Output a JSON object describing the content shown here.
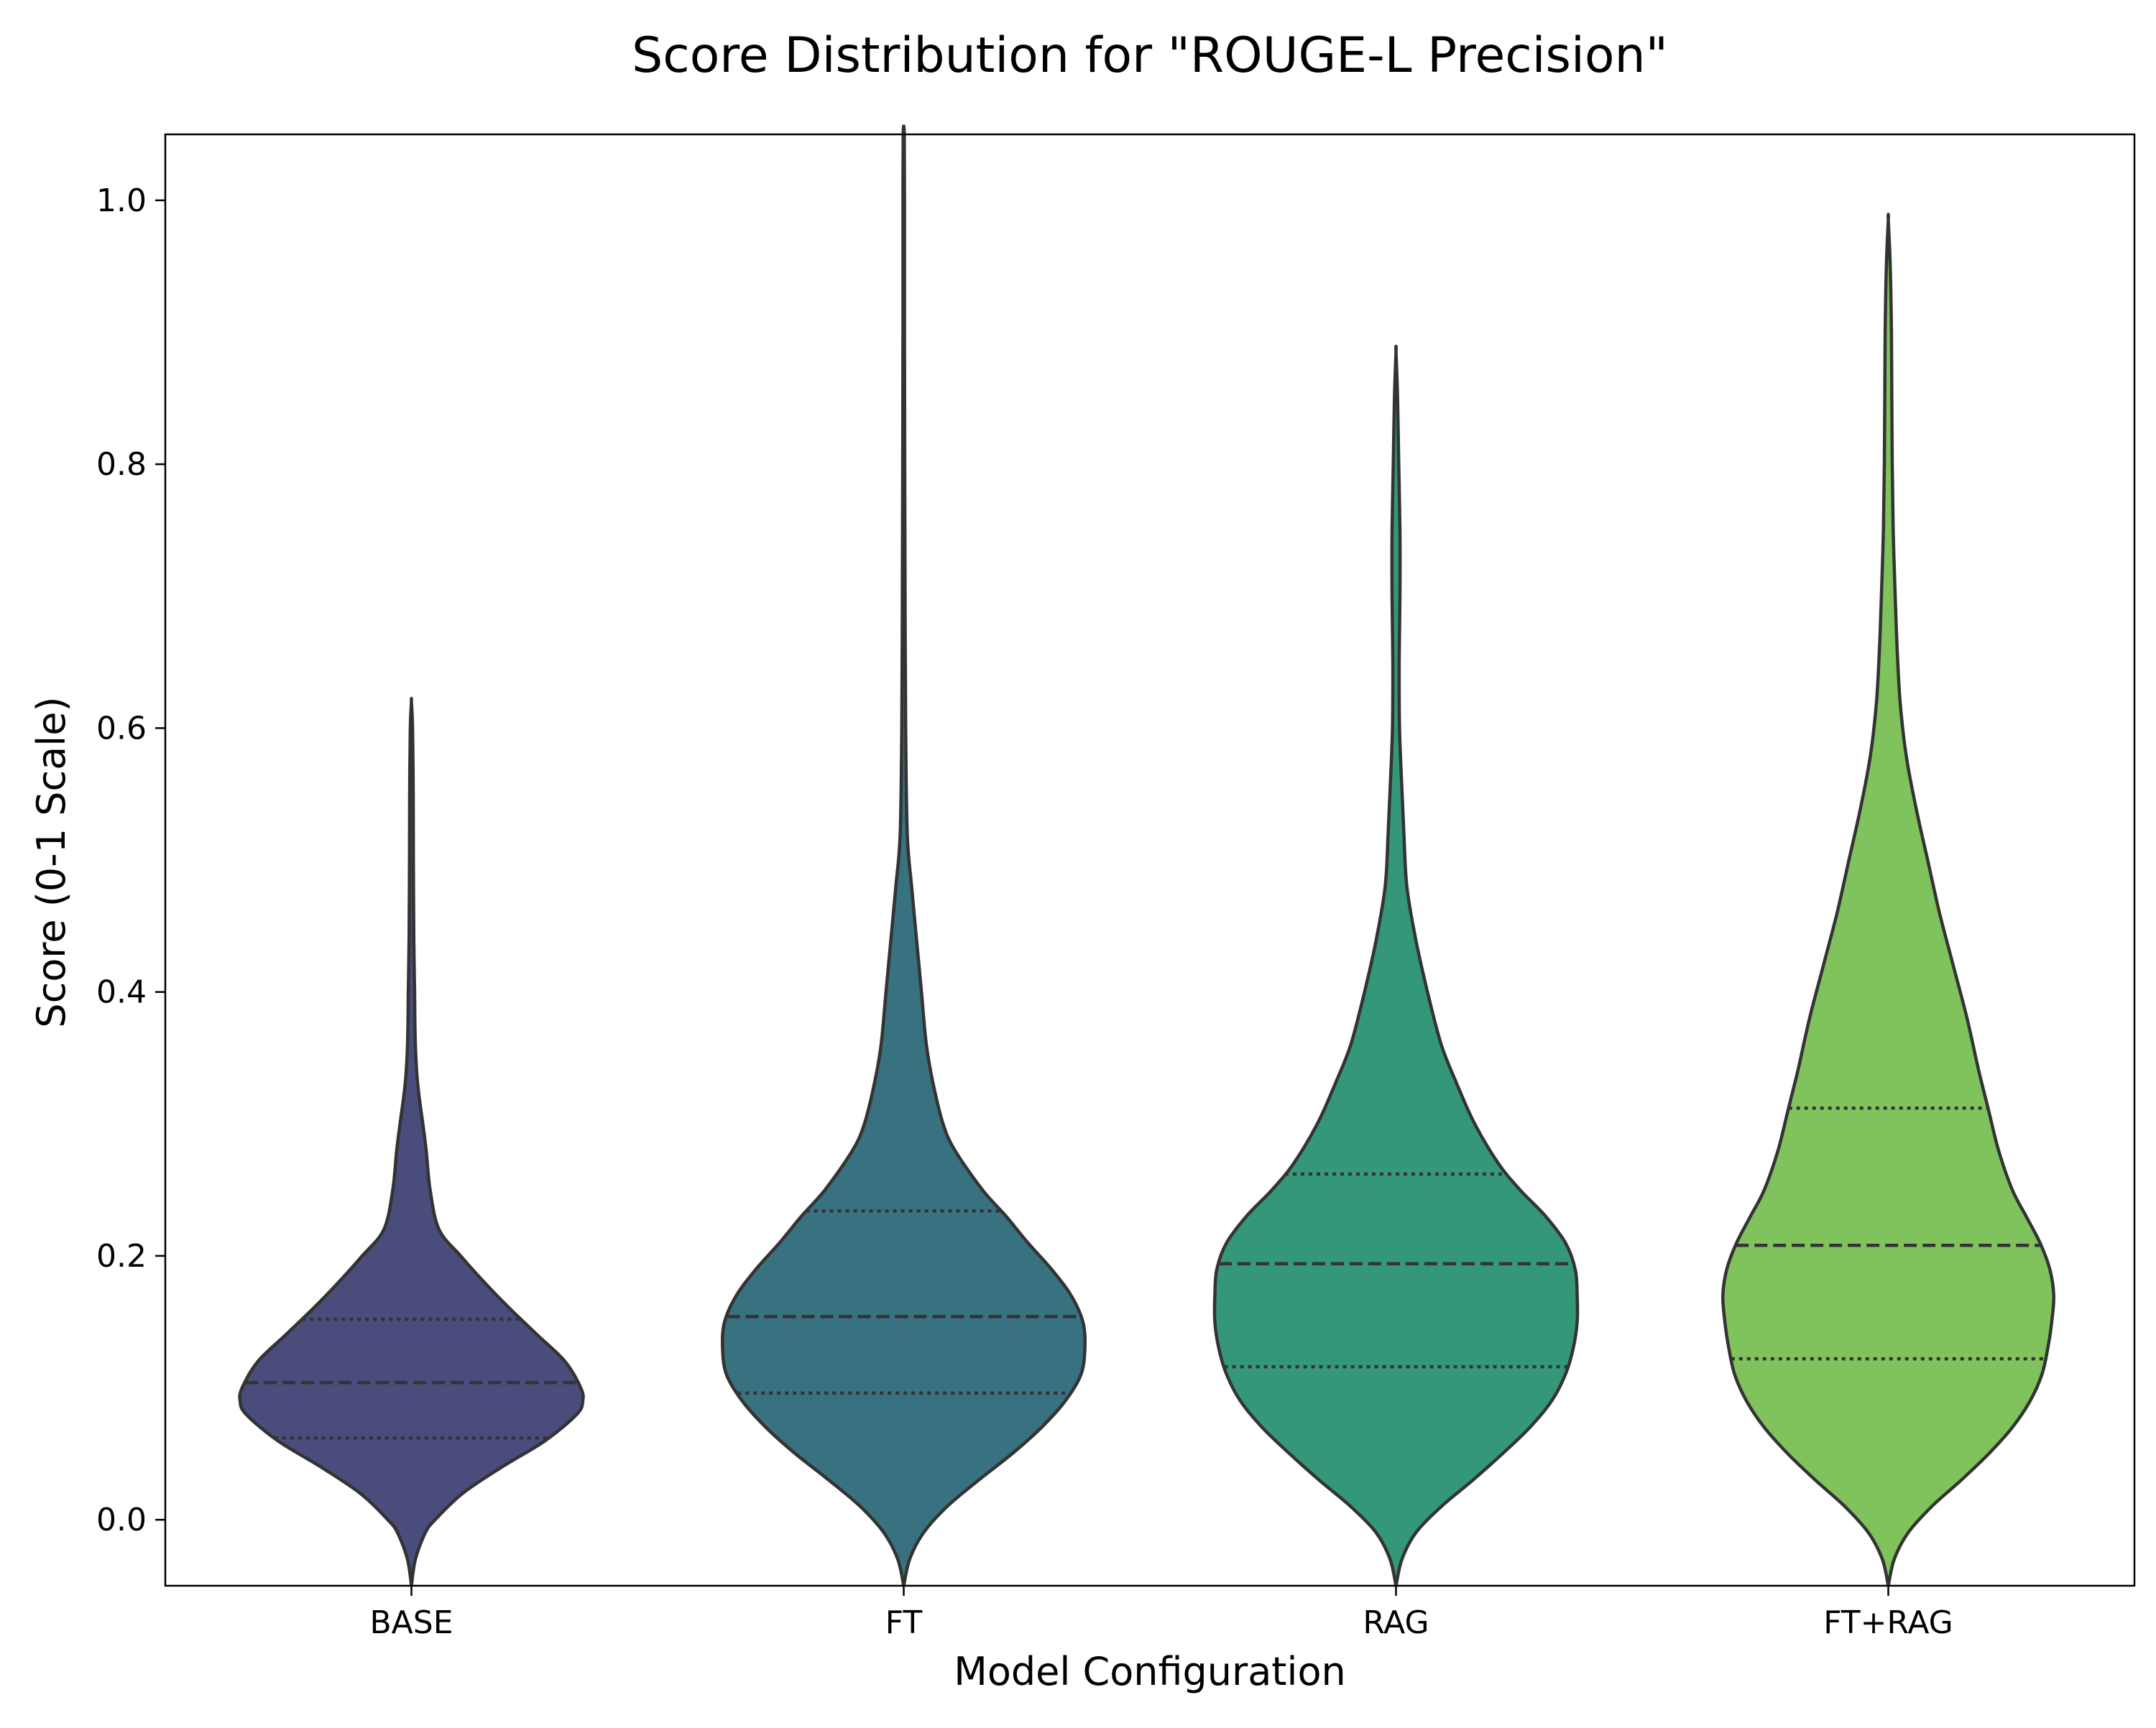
{
  "chart_data": {
    "type": "violin",
    "title": "Score Distribution for \"ROUGE-L Precision\"",
    "xlabel": "Model Configuration",
    "ylabel": "Score (0-1 Scale)",
    "ylim": [
      -0.05,
      1.05
    ],
    "yticks": [
      "0.0",
      "0.2",
      "0.4",
      "0.6",
      "0.8",
      "1.0"
    ],
    "grid": false,
    "legend": "none",
    "categories": [
      "BASE",
      "FT",
      "RAG",
      "FT+RAG"
    ],
    "colors": [
      "#4a4c7c",
      "#38717f",
      "#34977a",
      "#80c25c"
    ],
    "series": [
      {
        "category": "BASE",
        "q1": 0.062,
        "median": 0.104,
        "q3": 0.152,
        "max": 0.62,
        "density": [
          [
            -0.05,
            0.0
          ],
          [
            -0.03,
            0.02
          ],
          [
            -0.01,
            0.07
          ],
          [
            0.0,
            0.12
          ],
          [
            0.02,
            0.26
          ],
          [
            0.04,
            0.46
          ],
          [
            0.06,
            0.68
          ],
          [
            0.08,
            0.84
          ],
          [
            0.09,
            0.87
          ],
          [
            0.1,
            0.86
          ],
          [
            0.12,
            0.78
          ],
          [
            0.14,
            0.64
          ],
          [
            0.16,
            0.5
          ],
          [
            0.18,
            0.37
          ],
          [
            0.2,
            0.25
          ],
          [
            0.22,
            0.14
          ],
          [
            0.25,
            0.095
          ],
          [
            0.28,
            0.075
          ],
          [
            0.3,
            0.058
          ],
          [
            0.33,
            0.032
          ],
          [
            0.36,
            0.02
          ],
          [
            0.4,
            0.016
          ],
          [
            0.44,
            0.012
          ],
          [
            0.5,
            0.01
          ],
          [
            0.55,
            0.009
          ],
          [
            0.6,
            0.006
          ],
          [
            0.62,
            0.0
          ]
        ]
      },
      {
        "category": "FT",
        "q1": 0.096,
        "median": 0.154,
        "q3": 0.234,
        "max": 1.05,
        "density": [
          [
            -0.05,
            0.0
          ],
          [
            -0.03,
            0.03
          ],
          [
            -0.01,
            0.1
          ],
          [
            0.01,
            0.22
          ],
          [
            0.03,
            0.38
          ],
          [
            0.05,
            0.55
          ],
          [
            0.07,
            0.7
          ],
          [
            0.09,
            0.82
          ],
          [
            0.11,
            0.9
          ],
          [
            0.13,
            0.92
          ],
          [
            0.15,
            0.91
          ],
          [
            0.17,
            0.85
          ],
          [
            0.19,
            0.75
          ],
          [
            0.21,
            0.63
          ],
          [
            0.23,
            0.52
          ],
          [
            0.25,
            0.4
          ],
          [
            0.28,
            0.26
          ],
          [
            0.3,
            0.2
          ],
          [
            0.33,
            0.15
          ],
          [
            0.36,
            0.115
          ],
          [
            0.4,
            0.09
          ],
          [
            0.44,
            0.065
          ],
          [
            0.48,
            0.04
          ],
          [
            0.52,
            0.018
          ],
          [
            0.6,
            0.01
          ],
          [
            0.7,
            0.007
          ],
          [
            0.8,
            0.005
          ],
          [
            0.9,
            0.004
          ],
          [
            1.0,
            0.004
          ],
          [
            1.05,
            0.003
          ]
        ]
      },
      {
        "category": "RAG",
        "q1": 0.116,
        "median": 0.194,
        "q3": 0.262,
        "max": 0.885,
        "density": [
          [
            -0.05,
            0.0
          ],
          [
            -0.03,
            0.03
          ],
          [
            -0.01,
            0.1
          ],
          [
            0.01,
            0.23
          ],
          [
            0.03,
            0.39
          ],
          [
            0.05,
            0.54
          ],
          [
            0.07,
            0.68
          ],
          [
            0.09,
            0.79
          ],
          [
            0.11,
            0.86
          ],
          [
            0.13,
            0.9
          ],
          [
            0.15,
            0.92
          ],
          [
            0.17,
            0.92
          ],
          [
            0.19,
            0.91
          ],
          [
            0.21,
            0.86
          ],
          [
            0.23,
            0.76
          ],
          [
            0.25,
            0.63
          ],
          [
            0.27,
            0.52
          ],
          [
            0.3,
            0.4
          ],
          [
            0.33,
            0.31
          ],
          [
            0.36,
            0.23
          ],
          [
            0.4,
            0.16
          ],
          [
            0.44,
            0.1
          ],
          [
            0.48,
            0.055
          ],
          [
            0.52,
            0.04
          ],
          [
            0.56,
            0.028
          ],
          [
            0.6,
            0.018
          ],
          [
            0.65,
            0.016
          ],
          [
            0.7,
            0.02
          ],
          [
            0.75,
            0.02
          ],
          [
            0.8,
            0.014
          ],
          [
            0.85,
            0.008
          ],
          [
            0.885,
            0.0
          ]
        ]
      },
      {
        "category": "FT+RAG",
        "q1": 0.122,
        "median": 0.208,
        "q3": 0.312,
        "max": 0.985,
        "density": [
          [
            -0.05,
            0.0
          ],
          [
            -0.03,
            0.03
          ],
          [
            -0.01,
            0.1
          ],
          [
            0.01,
            0.22
          ],
          [
            0.03,
            0.37
          ],
          [
            0.05,
            0.51
          ],
          [
            0.07,
            0.63
          ],
          [
            0.09,
            0.72
          ],
          [
            0.11,
            0.78
          ],
          [
            0.13,
            0.81
          ],
          [
            0.15,
            0.83
          ],
          [
            0.17,
            0.84
          ],
          [
            0.19,
            0.82
          ],
          [
            0.21,
            0.77
          ],
          [
            0.23,
            0.7
          ],
          [
            0.25,
            0.63
          ],
          [
            0.28,
            0.56
          ],
          [
            0.31,
            0.51
          ],
          [
            0.34,
            0.46
          ],
          [
            0.38,
            0.4
          ],
          [
            0.42,
            0.33
          ],
          [
            0.46,
            0.26
          ],
          [
            0.5,
            0.2
          ],
          [
            0.54,
            0.14
          ],
          [
            0.58,
            0.09
          ],
          [
            0.62,
            0.06
          ],
          [
            0.66,
            0.045
          ],
          [
            0.7,
            0.035
          ],
          [
            0.75,
            0.025
          ],
          [
            0.8,
            0.02
          ],
          [
            0.85,
            0.018
          ],
          [
            0.9,
            0.016
          ],
          [
            0.95,
            0.01
          ],
          [
            0.985,
            0.0
          ]
        ]
      }
    ]
  }
}
